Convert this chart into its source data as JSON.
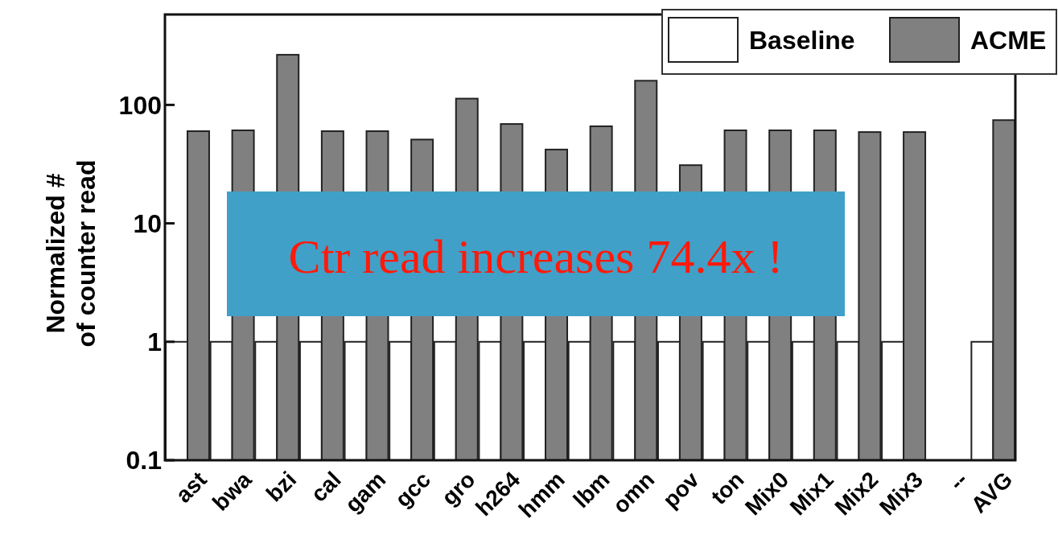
{
  "chart_data": {
    "type": "bar",
    "ylabel": "Normalized #\nof counter read",
    "log": true,
    "ylim": [
      0.1,
      580
    ],
    "yticks": [
      0.1,
      1,
      10,
      100
    ],
    "grid": false,
    "legend": "top right",
    "categories": [
      "ast",
      "bwa",
      "bzi",
      "cal",
      "gam",
      "gcc",
      "gro",
      "h264",
      "hmm",
      "lbm",
      "omn",
      "pov",
      "ton",
      "Mix0",
      "Mix1",
      "Mix2",
      "Mix3",
      "--",
      "AVG"
    ],
    "series": [
      {
        "name": "Baseline",
        "color": "#ffffff",
        "values": [
          1,
          1,
          1,
          1,
          1,
          1,
          1,
          1,
          1,
          1,
          1,
          1,
          1,
          1,
          1,
          1,
          1,
          null,
          1
        ]
      },
      {
        "name": "ACME",
        "color": "#808080",
        "values": [
          60,
          61,
          265,
          60,
          60,
          51,
          113,
          69,
          42,
          66,
          160,
          31,
          61,
          61,
          61,
          59,
          59,
          null,
          74.4
        ]
      }
    ],
    "annotations": [
      "Ctr read increases 74.4x !"
    ]
  }
}
